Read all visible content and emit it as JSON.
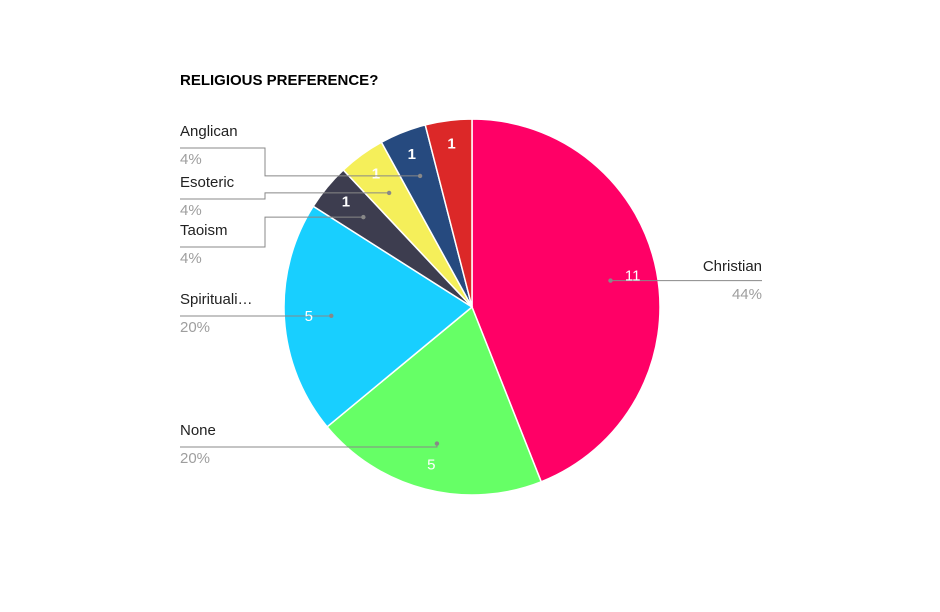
{
  "chart_data": {
    "type": "pie",
    "title": "RELIGIOUS PREFERENCE?",
    "categories": [
      "Christian",
      "None",
      "Spirituali…",
      "Taoism",
      "Esoteric",
      "Anglican",
      null
    ],
    "values": [
      11,
      5,
      5,
      1,
      1,
      1,
      1
    ],
    "percent_labels": [
      "44%",
      "20%",
      "20%",
      "4%",
      "4%",
      "4%",
      null
    ],
    "colors": [
      "#ff0066",
      "#66ff66",
      "#18cfff",
      "#3d3d4f",
      "#f5ef5a",
      "#264a7f",
      "#dc2828"
    ]
  }
}
